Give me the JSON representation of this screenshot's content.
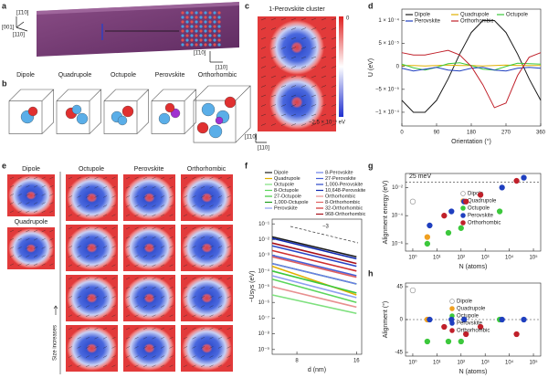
{
  "panel_labels": [
    "a",
    "b",
    "c",
    "d",
    "e",
    "f",
    "g",
    "h"
  ],
  "panel_a": {
    "axes": [
      "[001]",
      "[110]",
      "[1̄10]"
    ],
    "slab_axes": [
      "[1̄10]",
      "[110]"
    ],
    "labels": [
      "Dipole",
      "Quadrupole",
      "Octupole",
      "Perovskite",
      "Orthorhombic"
    ]
  },
  "panel_c": {
    "title": "1-Perovskite cluster",
    "colorbar": [
      "0",
      "−2.5 × 10⁻⁵ eV"
    ],
    "axes": [
      "[1̄10]",
      "[110]"
    ]
  },
  "panel_e": {
    "columns": [
      "Dipole",
      "Octupole",
      "Perovskite",
      "Orthorhombic"
    ],
    "second": "Quadrupole",
    "note": "Size increases"
  },
  "chart_data": [
    {
      "type": "line",
      "xlabel": "Orientation (°)",
      "ylabel": "U (eV)",
      "x": [
        0,
        30,
        60,
        90,
        120,
        150,
        180,
        210,
        240,
        270,
        300,
        330,
        360
      ],
      "xlim": [
        0,
        360
      ],
      "xticks": [
        0,
        90,
        180,
        270,
        360
      ],
      "ylim": [
        -0.00013,
        0.000125
      ],
      "yticks": [
        {
          "value": 0.0001,
          "label": "1 × 10⁻⁴"
        },
        {
          "value": 5e-05,
          "label": "5 × 10⁻⁵"
        },
        0,
        {
          "value": -5e-05,
          "label": "−5 × 10⁻⁵"
        },
        {
          "value": -0.0001,
          "label": "−1 × 10⁻⁴"
        }
      ],
      "legend": "top",
      "series": [
        {
          "name": "Dipole",
          "color": "#1a1a1a",
          "values": [
            -7.4e-05,
            -0.0001,
            -0.0001,
            -7.4e-05,
            -2.7e-05,
            2.7e-05,
            7.4e-05,
            0.0001,
            0.0001,
            7.4e-05,
            2.7e-05,
            -2.7e-05,
            -7.4e-05
          ]
        },
        {
          "name": "Quadrupole",
          "color": "#e0b000",
          "values": [
            2e-06,
            2e-06,
            1e-06,
            2e-06,
            3e-06,
            2e-06,
            2e-06,
            1e-06,
            2e-06,
            3e-06,
            2e-06,
            2e-06,
            2e-06
          ]
        },
        {
          "name": "Octupole",
          "color": "#3cc83c",
          "values": [
            5e-06,
            -3e-06,
            -8e-06,
            -2e-06,
            6e-06,
            8e-06,
            2e-06,
            -6e-06,
            -8e-06,
            0,
            7e-06,
            6e-06,
            5e-06
          ]
        },
        {
          "name": "Perovskite",
          "color": "#1f3fbf",
          "values": [
            -4e-06,
            -1e-05,
            -6e-06,
            -2e-06,
            -8e-06,
            -1e-05,
            -4e-06,
            -2e-06,
            -8e-06,
            -1e-05,
            -4e-06,
            -2e-06,
            -4e-06
          ]
        },
        {
          "name": "Orthorhombic",
          "color": "#c0202a",
          "values": [
            3e-05,
            2.5e-05,
            2.5e-05,
            3e-05,
            3.5e-05,
            2.5e-05,
            0,
            -4e-05,
            -9e-05,
            -8e-05,
            -2e-05,
            2e-05,
            3e-05
          ]
        }
      ]
    },
    {
      "type": "line",
      "xlabel": "d (nm)",
      "ylabel": "−Usys (eV)",
      "xscale": "log",
      "yscale": "log",
      "x": [
        6,
        16
      ],
      "xlim": [
        6,
        17
      ],
      "xticks": [
        8,
        16
      ],
      "ylim": [
        5e-10,
        0.2
      ],
      "yticks": [
        {
          "value": 0.1,
          "label": "10⁻¹"
        },
        {
          "value": 0.01,
          "label": "10⁻²"
        },
        {
          "value": 0.001,
          "label": "10⁻³"
        },
        {
          "value": 0.0001,
          "label": "10⁻⁴"
        },
        {
          "value": 1e-05,
          "label": "10⁻⁵"
        },
        {
          "value": 1e-06,
          "label": "10⁻⁶"
        },
        {
          "value": 1e-07,
          "label": "10⁻⁷"
        },
        {
          "value": 1e-08,
          "label": "10⁻⁸"
        },
        {
          "value": 1e-09,
          "label": "10⁻⁹"
        }
      ],
      "annotation": "−3",
      "legend": "top",
      "series": [
        {
          "name": "Dipole",
          "color": "#1a1a1a",
          "values": [
            0.015,
            0.0008
          ]
        },
        {
          "name": "Quadrupole",
          "color": "#e0b000",
          "values": [
            0.0002,
            3e-06
          ]
        },
        {
          "name": "Octupole",
          "color": "#7ee07e",
          "values": [
            3e-06,
            2e-07
          ]
        },
        {
          "name": "8-Octupole",
          "color": "#5cd65c",
          "values": [
            3e-05,
            1e-06
          ]
        },
        {
          "name": "27-Octupole",
          "color": "#3cc83c",
          "values": [
            0.0001,
            4e-06
          ]
        },
        {
          "name": "1,000-Octupole",
          "color": "#1e9e1e",
          "values": [
            0.0003,
            1.5e-05
          ]
        },
        {
          "name": "Perovskite",
          "color": "#8fa0f0",
          "values": [
            5e-05,
            2e-06
          ]
        },
        {
          "name": "8-Perovskite",
          "color": "#6a80e8",
          "values": [
            0.0003,
            1.5e-05
          ]
        },
        {
          "name": "27-Perovskite",
          "color": "#4660d8",
          "values": [
            0.001,
            5e-05
          ]
        },
        {
          "name": "1,000-Perovskite",
          "color": "#2a45c8",
          "values": [
            0.004,
            0.0002
          ]
        },
        {
          "name": "10,648-Perovskite",
          "color": "#1028b0",
          "values": [
            0.012,
            0.0006
          ]
        },
        {
          "name": "Orthorhombic",
          "color": "#e89090",
          "values": [
            1e-05,
            5e-07
          ]
        },
        {
          "name": "8-Orthorhombic",
          "color": "#e06060",
          "values": [
            0.0008,
            4e-05
          ]
        },
        {
          "name": "32-Orthorhombic",
          "color": "#d03030",
          "values": [
            0.002,
            0.0001
          ]
        },
        {
          "name": "968-Orthorhombic",
          "color": "#a8101a",
          "values": [
            0.006,
            0.0003
          ]
        }
      ]
    },
    {
      "type": "scatter",
      "xlabel": "N (atoms)",
      "ylabel": "Alignment energy (eV)",
      "xscale": "log",
      "yscale": "log",
      "xlim": [
        0.5,
        200000.0
      ],
      "xticks": [
        {
          "value": 1,
          "label": "10⁰"
        },
        {
          "value": 10,
          "label": "10¹"
        },
        {
          "value": 100,
          "label": "10²"
        },
        {
          "value": 1000,
          "label": "10³"
        },
        {
          "value": 10000,
          "label": "10⁴"
        },
        {
          "value": 100000,
          "label": "10⁵"
        }
      ],
      "ylim": [
        3e-07,
        0.1
      ],
      "yticks": [
        {
          "value": 1e-06,
          "label": "10⁻⁶"
        },
        {
          "value": 0.0001,
          "label": "10⁻⁴"
        },
        {
          "value": 0.01,
          "label": "10⁻²"
        }
      ],
      "reference_line": {
        "value": 0.025,
        "label": "25 meV"
      },
      "legend": "right",
      "series": [
        {
          "name": "Dipole",
          "color": "#999999",
          "hollow": true,
          "x": [
            1
          ],
          "y": [
            0.001
          ]
        },
        {
          "name": "Quadrupole",
          "color": "#f0a020",
          "x": [
            4
          ],
          "y": [
            3e-06
          ]
        },
        {
          "name": "Octupole",
          "color": "#3cc83c",
          "x": [
            4,
            30,
            100,
            4000
          ],
          "y": [
            1e-06,
            6e-06,
            1.3e-05,
            0.0002
          ]
        },
        {
          "name": "Perovskite",
          "color": "#1f3fbf",
          "x": [
            5,
            40,
            135,
            5000,
            40000
          ],
          "y": [
            2e-05,
            0.0002,
            0.001,
            0.01,
            0.05
          ]
        },
        {
          "name": "Orthorhombic",
          "color": "#c0202a",
          "x": [
            20,
            160,
            640,
            20000
          ],
          "y": [
            0.0001,
            0.001,
            0.003,
            0.03
          ]
        }
      ]
    },
    {
      "type": "scatter",
      "xlabel": "N (atoms)",
      "ylabel": "Alignment (°)",
      "xscale": "log",
      "xlim": [
        0.5,
        200000.0
      ],
      "xticks": [
        {
          "value": 1,
          "label": "10⁰"
        },
        {
          "value": 10,
          "label": "10¹"
        },
        {
          "value": 100,
          "label": "10²"
        },
        {
          "value": 1000,
          "label": "10³"
        },
        {
          "value": 10000,
          "label": "10⁴"
        },
        {
          "value": 100000,
          "label": "10⁵"
        }
      ],
      "ylim": [
        -50,
        50
      ],
      "yticks": [
        -45,
        0,
        45
      ],
      "reference_line": {
        "value": 0
      },
      "legend": "right",
      "series": [
        {
          "name": "Dipole",
          "color": "#999999",
          "hollow": true,
          "x": [
            1
          ],
          "y": [
            40
          ]
        },
        {
          "name": "Quadrupole",
          "color": "#f0a020",
          "x": [
            4
          ],
          "y": [
            0
          ]
        },
        {
          "name": "Octupole",
          "color": "#3cc83c",
          "x": [
            4,
            30,
            100,
            4000
          ],
          "y": [
            -30,
            -30,
            -30,
            0
          ]
        },
        {
          "name": "Perovskite",
          "color": "#1f3fbf",
          "x": [
            5,
            40,
            135,
            5000,
            40000
          ],
          "y": [
            0,
            0,
            0,
            0,
            0
          ]
        },
        {
          "name": "Orthorhombic",
          "color": "#c0202a",
          "x": [
            20,
            160,
            640,
            20000
          ],
          "y": [
            -10,
            -20,
            -10,
            -20
          ]
        }
      ]
    }
  ]
}
